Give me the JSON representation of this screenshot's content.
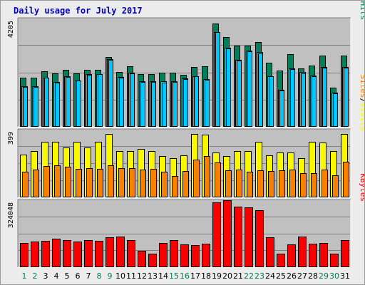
{
  "title": "Daily usage for July 2017",
  "colors": {
    "background": "#ececec",
    "panel": "#c0c0c0",
    "pages": "#00c8f8",
    "files": "#00c8f8",
    "hits": "#00805a",
    "sites": "#f88000",
    "visits": "#f8f800",
    "kbytes": "#f80000",
    "day_weekday": "#000000",
    "day_weekend": "#00805a"
  },
  "chart_data": [
    {
      "type": "bar",
      "panel": "hits-files-pages",
      "categories": [
        "1",
        "2",
        "3",
        "4",
        "5",
        "6",
        "7",
        "8",
        "9",
        "10",
        "11",
        "12",
        "13",
        "14",
        "15",
        "16",
        "17",
        "18",
        "19",
        "20",
        "21",
        "22",
        "23",
        "24",
        "25",
        "26",
        "27",
        "28",
        "29",
        "30",
        "31"
      ],
      "weekend_days": [
        "1",
        "2",
        "8",
        "9",
        "15",
        "16",
        "22",
        "23",
        "29",
        "30"
      ],
      "ymax_label": "4205",
      "legend": [
        {
          "text": "Pages",
          "series": "pages"
        },
        {
          "text": "/",
          "series": ""
        },
        {
          "text": "Files",
          "series": "files"
        },
        {
          "text": "/",
          "series": ""
        },
        {
          "text": "Hits",
          "series": "hits"
        }
      ],
      "series": [
        {
          "name": "Hits",
          "key": "hits",
          "values": [
            1940,
            1940,
            2210,
            2110,
            2260,
            2120,
            2260,
            2260,
            2770,
            2170,
            2400,
            2090,
            2090,
            2140,
            2150,
            2050,
            2370,
            2400,
            4100,
            3560,
            3210,
            3210,
            3360,
            2540,
            2230,
            2880,
            2320,
            2440,
            2820,
            1560,
            2820
          ]
        },
        {
          "name": "Files",
          "key": "files",
          "values": [
            1620,
            1620,
            1960,
            1780,
            2010,
            1840,
            2090,
            2090,
            2690,
            1980,
            2150,
            1800,
            1810,
            1800,
            1810,
            1910,
            2010,
            1880,
            3760,
            3140,
            2660,
            3030,
            2950,
            2010,
            1460,
            2310,
            2160,
            2020,
            2370,
            1350,
            2370
          ]
        },
        {
          "name": "Pages",
          "key": "pages",
          "values": [
            1580,
            1580,
            1940,
            1760,
            1980,
            1830,
            2070,
            2080,
            2660,
            1950,
            2120,
            1770,
            1780,
            1760,
            1770,
            1890,
            1990,
            1850,
            3740,
            3110,
            2630,
            2990,
            2920,
            1990,
            1430,
            2280,
            2130,
            2000,
            2340,
            1330,
            2340
          ]
        }
      ]
    },
    {
      "type": "bar",
      "panel": "visits-sites",
      "categories": [
        "1",
        "2",
        "3",
        "4",
        "5",
        "6",
        "7",
        "8",
        "9",
        "10",
        "11",
        "12",
        "13",
        "14",
        "15",
        "16",
        "17",
        "18",
        "19",
        "20",
        "21",
        "22",
        "23",
        "24",
        "25",
        "26",
        "27",
        "28",
        "29",
        "30",
        "31"
      ],
      "ymax_label": "399",
      "legend": [
        {
          "text": "Sites",
          "series": "sites"
        },
        {
          "text": "/",
          "series": ""
        },
        {
          "text": "Visits",
          "series": "visits"
        }
      ],
      "series": [
        {
          "name": "Visits",
          "key": "visits",
          "values": [
            260,
            282,
            338,
            338,
            305,
            338,
            305,
            338,
            388,
            283,
            283,
            294,
            283,
            251,
            240,
            257,
            388,
            382,
            273,
            251,
            283,
            283,
            338,
            257,
            272,
            273,
            240,
            338,
            333,
            283,
            388
          ]
        },
        {
          "name": "Sites",
          "key": "sites",
          "values": [
            155,
            169,
            190,
            196,
            186,
            172,
            178,
            173,
            196,
            178,
            177,
            169,
            172,
            156,
            131,
            162,
            228,
            251,
            212,
            166,
            169,
            155,
            166,
            161,
            166,
            171,
            146,
            148,
            168,
            135,
            215
          ]
        }
      ]
    },
    {
      "type": "bar",
      "panel": "kbytes",
      "categories": [
        "1",
        "2",
        "3",
        "4",
        "5",
        "6",
        "7",
        "8",
        "9",
        "10",
        "11",
        "12",
        "13",
        "14",
        "15",
        "16",
        "17",
        "18",
        "19",
        "20",
        "21",
        "22",
        "23",
        "24",
        "25",
        "26",
        "27",
        "28",
        "29",
        "30",
        "31"
      ],
      "ymax_label": "324048",
      "legend": [
        {
          "text": "KBytes",
          "series": "kbytes"
        }
      ],
      "series": [
        {
          "name": "KBytes",
          "key": "kbytes",
          "values": [
            120200,
            127000,
            130400,
            143700,
            133700,
            127000,
            133700,
            130400,
            150500,
            153800,
            136900,
            80200,
            67000,
            120200,
            133700,
            113600,
            110300,
            116900,
            324000,
            333000,
            303800,
            300400,
            285500,
            150500,
            67000,
            113600,
            153800,
            116900,
            120200,
            67000,
            133700
          ]
        }
      ]
    }
  ]
}
